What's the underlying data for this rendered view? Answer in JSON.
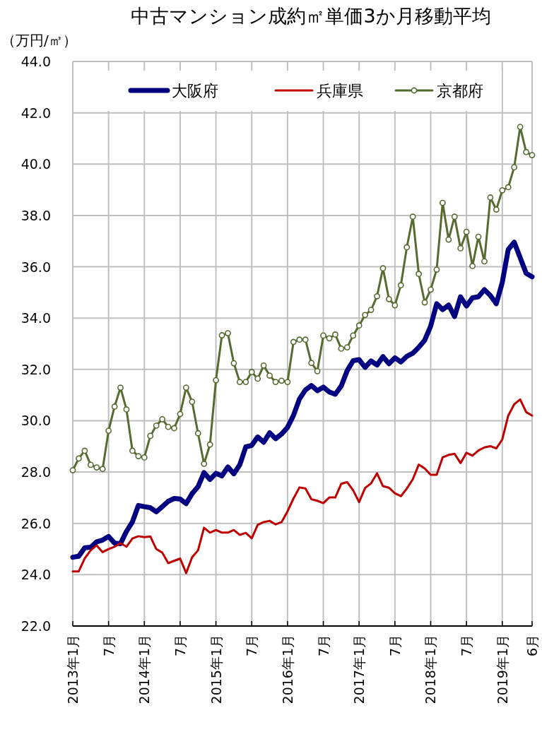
{
  "chart_data": {
    "type": "line",
    "title": "中古マンション成約㎡単価3か月移動平均",
    "ylabel": "（万円/㎡）",
    "x": [
      "2013-01",
      "2013-02",
      "2013-03",
      "2013-04",
      "2013-05",
      "2013-06",
      "2013-07",
      "2013-08",
      "2013-09",
      "2013-10",
      "2013-11",
      "2013-12",
      "2014-01",
      "2014-02",
      "2014-03",
      "2014-04",
      "2014-05",
      "2014-06",
      "2014-07",
      "2014-08",
      "2014-09",
      "2014-10",
      "2014-11",
      "2014-12",
      "2015-01",
      "2015-02",
      "2015-03",
      "2015-04",
      "2015-05",
      "2015-06",
      "2015-07",
      "2015-08",
      "2015-09",
      "2015-10",
      "2015-11",
      "2015-12",
      "2016-01",
      "2016-02",
      "2016-03",
      "2016-04",
      "2016-05",
      "2016-06",
      "2016-07",
      "2016-08",
      "2016-09",
      "2016-10",
      "2016-11",
      "2016-12",
      "2017-01",
      "2017-02",
      "2017-03",
      "2017-04",
      "2017-05",
      "2017-06",
      "2017-07",
      "2017-08",
      "2017-09",
      "2017-10",
      "2017-11",
      "2017-12",
      "2018-01",
      "2018-02",
      "2018-03",
      "2018-04",
      "2018-05",
      "2018-06",
      "2018-07",
      "2018-08",
      "2018-09",
      "2018-10",
      "2018-11",
      "2018-12",
      "2019-01",
      "2019-02",
      "2019-03",
      "2019-04",
      "2019-05",
      "2019-06"
    ],
    "series": [
      {
        "name": "大阪府",
        "color": "#000080",
        "marker": "none",
        "values": [
          24.68,
          24.72,
          25.05,
          25.07,
          25.28,
          25.35,
          25.49,
          25.23,
          25.21,
          25.69,
          26.06,
          26.7,
          26.65,
          26.61,
          26.45,
          26.65,
          26.86,
          26.97,
          26.95,
          26.77,
          27.16,
          27.43,
          27.98,
          27.71,
          27.95,
          27.85,
          28.2,
          27.93,
          28.29,
          28.98,
          29.04,
          29.37,
          29.16,
          29.53,
          29.3,
          29.48,
          29.74,
          30.21,
          30.85,
          31.2,
          31.37,
          31.17,
          31.31,
          31.12,
          31.03,
          31.35,
          31.95,
          32.34,
          32.38,
          32.08,
          32.33,
          32.17,
          32.5,
          32.22,
          32.45,
          32.29,
          32.51,
          32.63,
          32.86,
          33.14,
          33.69,
          34.56,
          34.33,
          34.51,
          34.06,
          34.83,
          34.47,
          34.79,
          34.83,
          35.11,
          34.88,
          34.56,
          35.39,
          36.67,
          36.96,
          36.35,
          35.75,
          35.61
        ]
      },
      {
        "name": "兵庫県",
        "color": "#c00000",
        "marker": "none",
        "values": [
          24.13,
          24.13,
          24.63,
          24.95,
          25.14,
          24.88,
          25.0,
          25.09,
          25.23,
          25.09,
          25.41,
          25.5,
          25.46,
          25.49,
          25.0,
          24.86,
          24.45,
          24.54,
          24.63,
          24.06,
          24.68,
          24.95,
          25.83,
          25.64,
          25.74,
          25.64,
          25.64,
          25.74,
          25.55,
          25.63,
          25.42,
          25.94,
          26.05,
          26.1,
          25.96,
          26.05,
          26.47,
          26.97,
          27.4,
          27.36,
          26.94,
          26.88,
          26.79,
          27.01,
          27.01,
          27.54,
          27.61,
          27.29,
          26.83,
          27.38,
          27.56,
          27.95,
          27.45,
          27.39,
          27.17,
          27.06,
          27.36,
          27.72,
          28.29,
          28.14,
          27.89,
          27.89,
          28.57,
          28.67,
          28.71,
          28.35,
          28.75,
          28.64,
          28.84,
          28.96,
          29.01,
          28.92,
          29.27,
          30.2,
          30.64,
          30.83,
          30.34,
          30.2
        ]
      },
      {
        "name": "京都府",
        "color": "#556b2f",
        "marker": "circle",
        "values": [
          28.07,
          28.53,
          28.83,
          28.28,
          28.18,
          28.12,
          29.61,
          30.55,
          31.29,
          30.44,
          28.83,
          28.62,
          28.57,
          29.41,
          29.81,
          30.06,
          29.76,
          29.71,
          30.26,
          31.29,
          30.74,
          29.51,
          28.32,
          29.07,
          31.58,
          33.33,
          33.41,
          32.24,
          31.51,
          31.51,
          31.9,
          31.64,
          32.15,
          31.76,
          31.51,
          31.56,
          31.51,
          33.07,
          33.16,
          33.16,
          32.25,
          31.93,
          33.32,
          33.21,
          33.36,
          32.81,
          32.86,
          33.32,
          33.71,
          34.12,
          34.32,
          34.85,
          35.94,
          34.74,
          34.5,
          35.28,
          36.76,
          37.95,
          35.72,
          34.61,
          35.11,
          35.89,
          38.49,
          37.06,
          37.95,
          36.72,
          37.36,
          36.03,
          37.17,
          36.21,
          38.7,
          38.23,
          38.98,
          39.1,
          39.88,
          41.45,
          40.47,
          40.35
        ]
      }
    ],
    "xlim": [
      "2013-01",
      "2019-06"
    ],
    "xticks": [
      {
        "value": "2013-01",
        "label": "2013年1月"
      },
      {
        "value": "2013-07",
        "label": "7月"
      },
      {
        "value": "2014-01",
        "label": "2014年1月"
      },
      {
        "value": "2014-07",
        "label": "7月"
      },
      {
        "value": "2015-01",
        "label": "2015年1月"
      },
      {
        "value": "2015-07",
        "label": "7月"
      },
      {
        "value": "2016-01",
        "label": "2016年1月"
      },
      {
        "value": "2016-07",
        "label": "7月"
      },
      {
        "value": "2017-01",
        "label": "2017年1月"
      },
      {
        "value": "2017-07",
        "label": "7月"
      },
      {
        "value": "2018-01",
        "label": "2018年1月"
      },
      {
        "value": "2018-07",
        "label": "7月"
      },
      {
        "value": "2019-01",
        "label": "2019年1月"
      },
      {
        "value": "2019-06",
        "label": "6月"
      }
    ],
    "ylim": [
      22,
      44
    ],
    "yticks": [
      {
        "value": 22,
        "label": "22.0"
      },
      {
        "value": 24,
        "label": "24.0"
      },
      {
        "value": 26,
        "label": "26.0"
      },
      {
        "value": 28,
        "label": "28.0"
      },
      {
        "value": 30,
        "label": "30.0"
      },
      {
        "value": 32,
        "label": "32.0"
      },
      {
        "value": 34,
        "label": "34.0"
      },
      {
        "value": 36,
        "label": "36.0"
      },
      {
        "value": 38,
        "label": "38.0"
      },
      {
        "value": 40,
        "label": "40.0"
      },
      {
        "value": 42,
        "label": "42.0"
      },
      {
        "value": 44,
        "label": "44.0"
      }
    ],
    "grid": true,
    "legend": "top",
    "line_style": "solid"
  }
}
